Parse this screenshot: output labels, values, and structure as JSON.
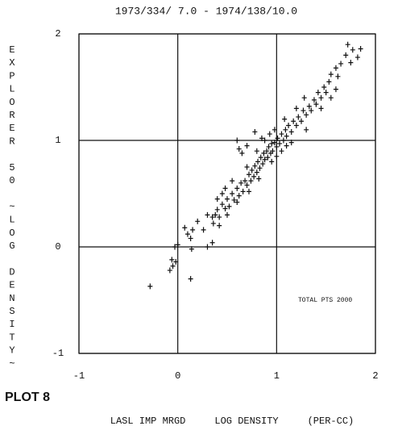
{
  "chart_data": {
    "type": "scatter",
    "title": "1973/334/ 7.0 - 1974/138/10.0",
    "y_label": "EXPLORER 50 ~LOG DENSITY~",
    "x_label": "LASL IMP MRGD     LOG DENSITY     (PER-CC)",
    "plot_label": "PLOT 8",
    "annotation": "TOTAL PTS 2000",
    "color": "#111111",
    "grid": true,
    "xlim": [
      -1,
      2
    ],
    "ylim": [
      -1,
      2
    ],
    "xticks": [
      -1,
      0,
      1,
      2
    ],
    "yticks": [
      -1,
      0,
      1,
      2
    ],
    "x": [
      -0.28,
      -0.08,
      -0.05,
      -0.02,
      -0.06,
      0.13,
      -0.03,
      0.0,
      0.07,
      0.1,
      0.13,
      0.15,
      0.14,
      0.2,
      0.35,
      0.3,
      0.26,
      0.3,
      0.35,
      0.38,
      0.4,
      0.42,
      0.45,
      0.48,
      0.5,
      0.52,
      0.55,
      0.57,
      0.6,
      0.62,
      0.64,
      0.66,
      0.68,
      0.7,
      0.72,
      0.74,
      0.75,
      0.77,
      0.78,
      0.8,
      0.81,
      0.83,
      0.84,
      0.86,
      0.87,
      0.88,
      0.9,
      0.91,
      0.92,
      0.94,
      0.95,
      0.96,
      0.98,
      1.0,
      1.01,
      1.03,
      1.05,
      1.07,
      1.09,
      1.1,
      1.12,
      1.15,
      1.17,
      1.2,
      1.22,
      1.25,
      1.27,
      1.3,
      1.33,
      1.35,
      1.38,
      1.4,
      1.42,
      1.45,
      1.48,
      1.5,
      1.53,
      1.55,
      1.6,
      1.65,
      1.7,
      1.72,
      1.77,
      1.82,
      1.85,
      1.75,
      0.55,
      0.6,
      0.7,
      0.72,
      0.8,
      0.82,
      0.6,
      0.62,
      0.65,
      0.7,
      0.78,
      0.85,
      0.95,
      1.0,
      1.05,
      1.1,
      1.15,
      1.3,
      1.45,
      1.55,
      1.6,
      1.62,
      0.45,
      0.5,
      0.4,
      0.48,
      0.88,
      0.93,
      0.98,
      1.08,
      1.2,
      1.28,
      0.36,
      0.42
    ],
    "values": [
      -0.37,
      -0.22,
      -0.18,
      -0.14,
      -0.12,
      -0.3,
      0.0,
      0.02,
      0.18,
      0.12,
      0.08,
      0.16,
      -0.02,
      0.24,
      0.04,
      0.0,
      0.16,
      0.3,
      0.28,
      0.3,
      0.35,
      0.28,
      0.4,
      0.36,
      0.45,
      0.38,
      0.5,
      0.44,
      0.55,
      0.48,
      0.6,
      0.52,
      0.62,
      0.58,
      0.68,
      0.62,
      0.72,
      0.66,
      0.76,
      0.7,
      0.8,
      0.74,
      0.84,
      0.78,
      0.88,
      0.82,
      0.9,
      0.84,
      0.94,
      0.88,
      0.97,
      0.9,
      0.98,
      0.94,
      1.02,
      0.97,
      1.06,
      1.0,
      1.1,
      1.04,
      1.14,
      1.08,
      1.18,
      1.14,
      1.22,
      1.18,
      1.28,
      1.24,
      1.32,
      1.28,
      1.38,
      1.34,
      1.45,
      1.4,
      1.5,
      1.45,
      1.55,
      1.62,
      1.68,
      1.72,
      1.8,
      1.9,
      1.85,
      1.78,
      1.86,
      1.73,
      0.62,
      0.42,
      0.75,
      0.52,
      0.9,
      0.64,
      1.0,
      0.92,
      0.88,
      0.95,
      1.08,
      1.02,
      0.8,
      0.85,
      0.9,
      0.95,
      0.98,
      1.1,
      1.3,
      1.4,
      1.48,
      1.6,
      0.5,
      0.3,
      0.45,
      0.55,
      1.0,
      1.06,
      1.1,
      1.2,
      1.3,
      1.4,
      0.22,
      0.2
    ]
  }
}
